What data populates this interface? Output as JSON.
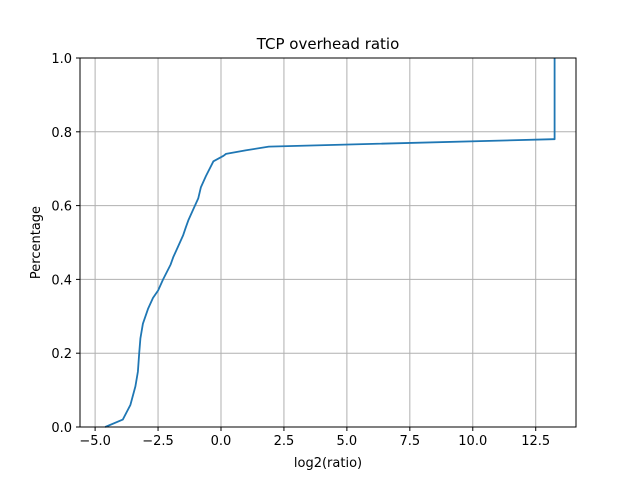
{
  "chart_data": {
    "type": "line",
    "title": "TCP overhead ratio",
    "xlabel": "log2(ratio)",
    "ylabel": "Percentage",
    "xlim": [
      -5.6,
      14.1
    ],
    "ylim": [
      0.0,
      1.0
    ],
    "grid": true,
    "x_ticks": [
      -5.0,
      -2.5,
      0.0,
      2.5,
      5.0,
      7.5,
      10.0,
      12.5
    ],
    "x_tick_labels": [
      "−5.0",
      "−2.5",
      "0.0",
      "2.5",
      "5.0",
      "7.5",
      "10.0",
      "12.5"
    ],
    "y_ticks": [
      0.0,
      0.2,
      0.4,
      0.6,
      0.8,
      1.0
    ],
    "y_tick_labels": [
      "0.0",
      "0.2",
      "0.4",
      "0.6",
      "0.8",
      "1.0"
    ],
    "series": [
      {
        "color": "#1f77b4",
        "x": [
          -4.6,
          -3.9,
          -3.6,
          -3.4,
          -3.3,
          -3.25,
          -3.2,
          -3.1,
          -2.9,
          -2.7,
          -2.5,
          -2.3,
          -2.0,
          -1.9,
          -1.7,
          -1.5,
          -1.4,
          -1.3,
          -1.1,
          -0.9,
          -0.8,
          -0.6,
          -0.3,
          0.1,
          0.2,
          1.0,
          1.9,
          13.2,
          13.25,
          13.25
        ],
        "y": [
          0.0,
          0.02,
          0.06,
          0.11,
          0.15,
          0.2,
          0.24,
          0.28,
          0.32,
          0.35,
          0.37,
          0.4,
          0.44,
          0.46,
          0.49,
          0.52,
          0.54,
          0.56,
          0.59,
          0.62,
          0.65,
          0.68,
          0.72,
          0.735,
          0.74,
          0.75,
          0.76,
          0.78,
          0.78,
          1.0
        ]
      }
    ]
  }
}
